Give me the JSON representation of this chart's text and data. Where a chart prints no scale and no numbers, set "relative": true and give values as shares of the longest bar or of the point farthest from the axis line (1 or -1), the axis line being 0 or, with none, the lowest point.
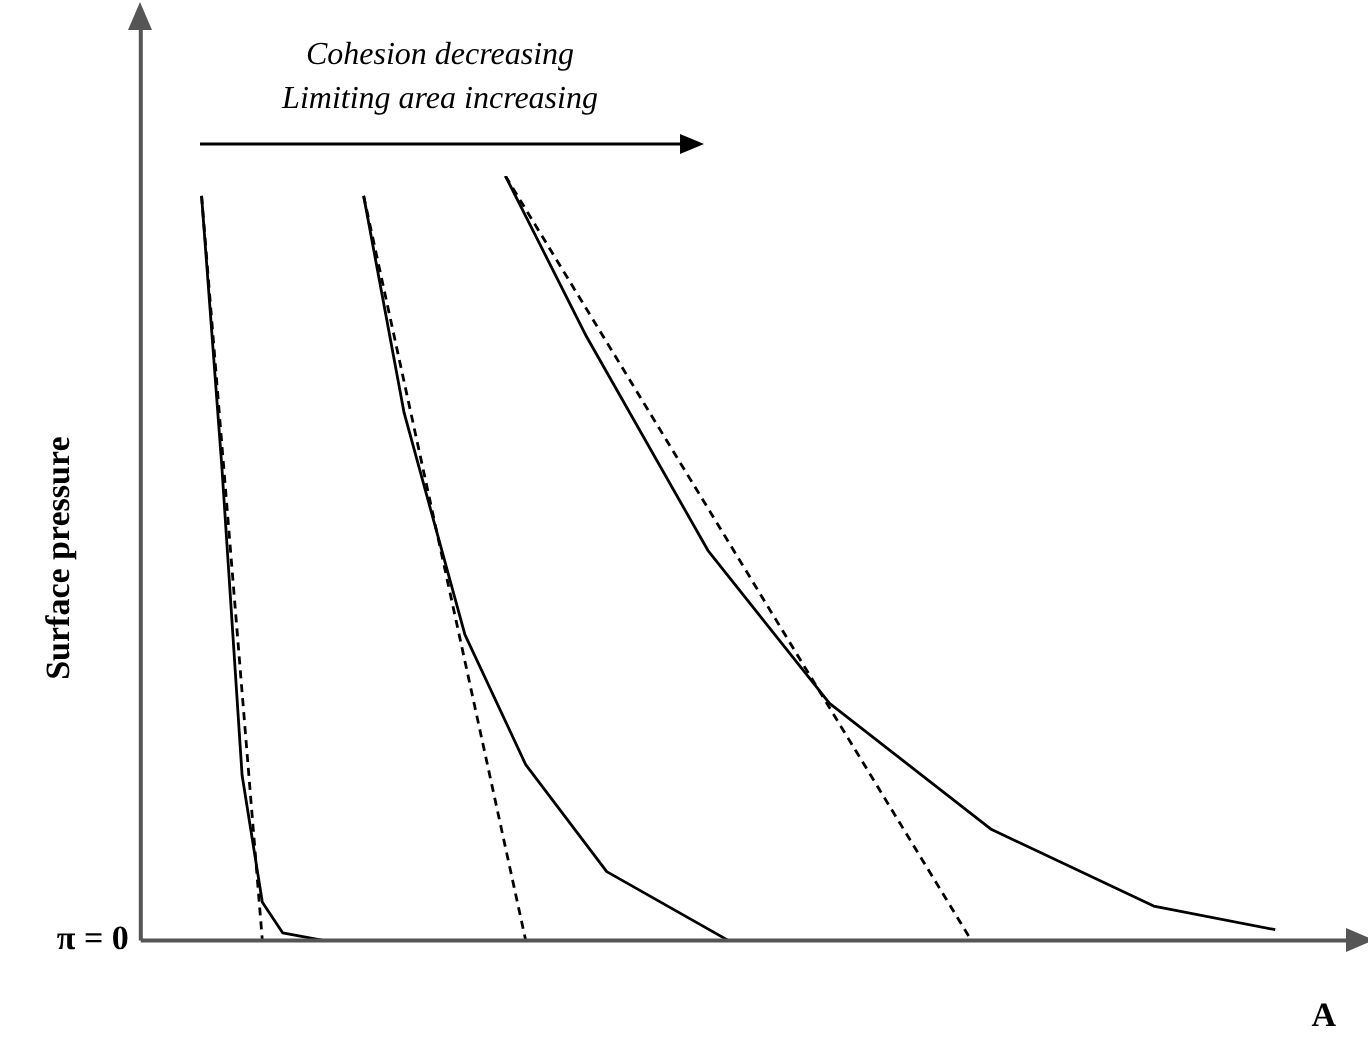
{
  "chart_data": {
    "type": "line",
    "relative": true,
    "xlabel": "A",
    "ylabel": "Surface pressure",
    "grid": false,
    "legend": false,
    "marker": "none",
    "annotations": [
      "Cohesion decreasing",
      "Limiting area increasing",
      "π = 0"
    ],
    "categories": [
      null,
      null,
      null,
      null,
      null,
      null,
      null,
      null,
      null,
      null,
      null,
      null,
      null,
      null,
      null,
      null,
      null,
      null,
      null,
      null,
      null,
      null,
      null,
      null,
      null,
      null,
      null,
      null,
      null,
      null,
      null,
      null,
      null,
      null,
      null,
      null,
      null,
      null,
      null,
      null,
      null,
      null,
      null,
      null,
      null,
      null,
      null,
      null,
      null,
      null,
      null,
      null,
      null,
      null,
      null,
      null,
      null,
      null,
      null,
      null
    ],
    "series": [
      {
        "color": "#000000",
        "line_style": "solid",
        "values": [
          null,
          null,
          null,
          0.974,
          0.62,
          0.216,
          0.05,
          0.01,
          null,
          0,
          null,
          null,
          null,
          null,
          null,
          null,
          null,
          null,
          null,
          null,
          null,
          null,
          null,
          null,
          null,
          null,
          null,
          null,
          null,
          null,
          null,
          null,
          null,
          null,
          null,
          null,
          null,
          null,
          null,
          null,
          null,
          null,
          null,
          null,
          null,
          null,
          null,
          null,
          null,
          null,
          null,
          null,
          null,
          null,
          null,
          null,
          null,
          null,
          null,
          null
        ]
      },
      {
        "color": "#000000",
        "line_style": "dashed",
        "values": [
          null,
          null,
          null,
          0.974,
          null,
          null,
          0,
          null,
          null,
          null,
          null,
          null,
          null,
          null,
          null,
          null,
          null,
          null,
          null,
          null,
          null,
          null,
          null,
          null,
          null,
          null,
          null,
          null,
          null,
          null,
          null,
          null,
          null,
          null,
          null,
          null,
          null,
          null,
          null,
          null,
          null,
          null,
          null,
          null,
          null,
          null,
          null,
          null,
          null,
          null,
          null,
          null,
          null,
          null,
          null,
          null,
          null,
          null,
          null,
          null
        ]
      },
      {
        "color": "#000000",
        "line_style": "solid",
        "values": [
          null,
          null,
          null,
          null,
          null,
          null,
          null,
          null,
          null,
          null,
          null,
          0.974,
          null,
          0.69,
          null,
          null,
          0.4,
          null,
          null,
          0.23,
          null,
          null,
          null,
          0.09,
          null,
          null,
          null,
          null,
          null,
          0,
          null,
          null,
          null,
          null,
          null,
          null,
          null,
          null,
          null,
          null,
          null,
          null,
          null,
          null,
          null,
          null,
          null,
          null,
          null,
          null,
          null,
          null,
          null,
          null,
          null,
          null,
          null,
          null,
          null,
          null
        ]
      },
      {
        "color": "#000000",
        "line_style": "dashed",
        "values": [
          null,
          null,
          null,
          null,
          null,
          null,
          null,
          null,
          null,
          null,
          null,
          0.974,
          null,
          null,
          null,
          null,
          null,
          null,
          null,
          0,
          null,
          null,
          null,
          null,
          null,
          null,
          null,
          null,
          null,
          null,
          null,
          null,
          null,
          null,
          null,
          null,
          null,
          null,
          null,
          null,
          null,
          null,
          null,
          null,
          null,
          null,
          null,
          null,
          null,
          null,
          null,
          null,
          null,
          null,
          null,
          null,
          null,
          null,
          null,
          null
        ]
      },
      {
        "color": "#000000",
        "line_style": "solid",
        "values": [
          null,
          null,
          null,
          null,
          null,
          null,
          null,
          null,
          null,
          null,
          null,
          null,
          null,
          null,
          null,
          null,
          null,
          null,
          1,
          null,
          null,
          null,
          0.79,
          null,
          null,
          null,
          null,
          null,
          0.51,
          null,
          null,
          null,
          null,
          null,
          0.31,
          null,
          null,
          null,
          null,
          null,
          null,
          null,
          0.145,
          null,
          null,
          null,
          null,
          null,
          null,
          null,
          0.045,
          null,
          null,
          null,
          null,
          null,
          0.014,
          null,
          null,
          null
        ]
      },
      {
        "color": "#000000",
        "line_style": "dashed",
        "values": [
          null,
          null,
          null,
          null,
          null,
          null,
          null,
          null,
          null,
          null,
          null,
          null,
          null,
          null,
          null,
          null,
          null,
          null,
          1,
          null,
          null,
          null,
          null,
          null,
          null,
          null,
          null,
          null,
          null,
          null,
          null,
          null,
          null,
          null,
          null,
          null,
          null,
          null,
          null,
          null,
          null,
          0,
          null,
          null,
          null,
          null,
          null,
          null,
          null,
          null,
          null,
          null,
          null,
          null,
          null,
          null,
          null,
          null,
          null,
          null
        ]
      }
    ]
  }
}
